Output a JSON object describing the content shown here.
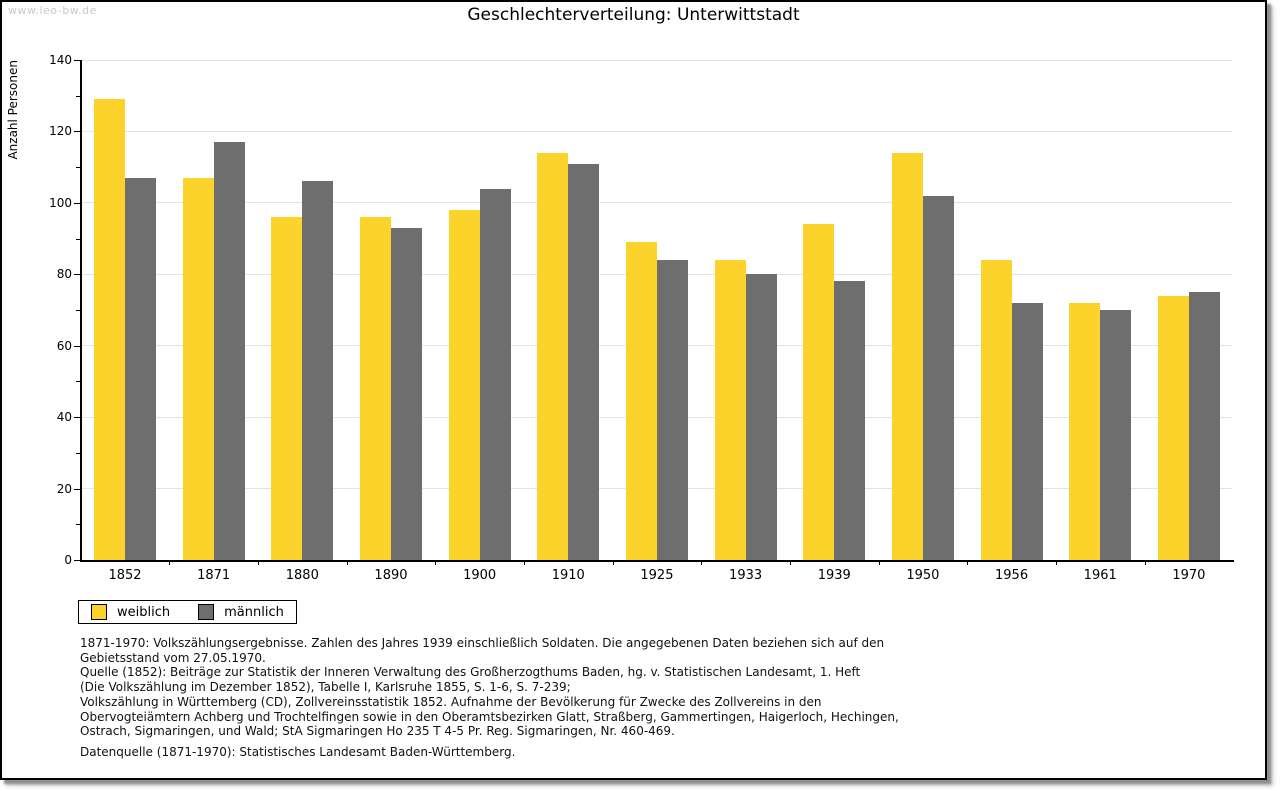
{
  "page": {
    "watermark": "www.leo-bw.de",
    "title": "Geschlechterverteilung: Unterwittstadt"
  },
  "chart_data": {
    "type": "bar",
    "title": "Geschlechterverteilung: Unterwittstadt",
    "xlabel": "",
    "ylabel": "Anzahl Personen",
    "ylim": [
      0,
      140
    ],
    "ytick_step": 20,
    "grid": true,
    "legend_position": "bottom-left",
    "categories": [
      "1852",
      "1871",
      "1880",
      "1890",
      "1900",
      "1910",
      "1925",
      "1933",
      "1939",
      "1950",
      "1956",
      "1961",
      "1970"
    ],
    "series": [
      {
        "name": "weiblich",
        "color": "#fcd32b",
        "values": [
          129,
          107,
          96,
          96,
          98,
          114,
          89,
          84,
          94,
          114,
          84,
          72,
          74
        ]
      },
      {
        "name": "männlich",
        "color": "#6e6e6e",
        "values": [
          107,
          117,
          106,
          93,
          104,
          111,
          84,
          80,
          78,
          102,
          72,
          70,
          75
        ]
      }
    ]
  },
  "caption": {
    "lines": [
      "1871-1970: Volkszählungsergebnisse. Zahlen des Jahres 1939 einschließlich Soldaten. Die angegebenen Daten beziehen sich auf den",
      "Gebietsstand vom 27.05.1970.",
      "Quelle (1852): Beiträge zur Statistik der Inneren Verwaltung des Großherzogthums Baden, hg. v. Statistischen Landesamt, 1. Heft",
      "(Die Volkszählung im Dezember 1852), Tabelle I, Karlsruhe 1855, S. 1-6, S. 7-239;",
      "Volkszählung in Württemberg (CD), Zollvereinsstatistik 1852. Aufnahme der Bevölkerung für Zwecke des Zollvereins in den",
      "Obervogteiämtern Achberg und Trochtelfingen sowie in den Oberamtsbezirken Glatt, Straßberg, Gammertingen, Haigerloch, Hechingen,",
      "Ostrach, Sigmaringen, und Wald; StA Sigmaringen Ho 235 T 4-5 Pr. Reg. Sigmaringen, Nr. 460-469."
    ],
    "source": "Datenquelle (1871-1970): Statistisches Landesamt Baden-Württemberg."
  },
  "colors": {
    "female_bar": "#fcd32b",
    "male_bar": "#6e6e6e",
    "gridline": "#e2e2e2",
    "watermark": "#c9c9c9",
    "frame_border": "#000000"
  }
}
